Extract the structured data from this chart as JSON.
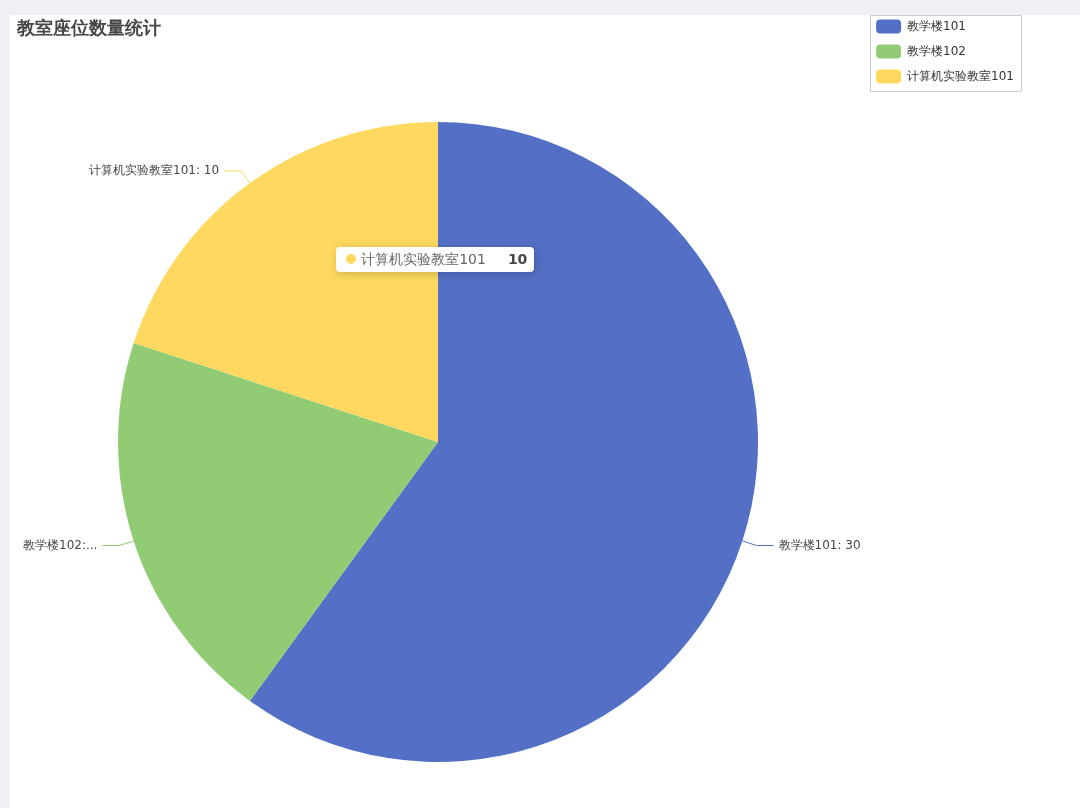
{
  "chart_data": {
    "type": "pie",
    "title": "教室座位数量统计",
    "categories": [
      "教学楼101",
      "教学楼102",
      "计算机实验教室101"
    ],
    "values": [
      30,
      10,
      10
    ],
    "colors": [
      "#5470c6",
      "#91cc75",
      "#ffd95f"
    ],
    "value_labels": [
      "教学楼101: 30",
      "教学楼102:...",
      "计算机实验教室101: 10"
    ],
    "legend": "top right",
    "annotations": [
      {
        "text": "计算机实验教室101 10",
        "x": "计算机实验教室101"
      }
    ]
  }
}
